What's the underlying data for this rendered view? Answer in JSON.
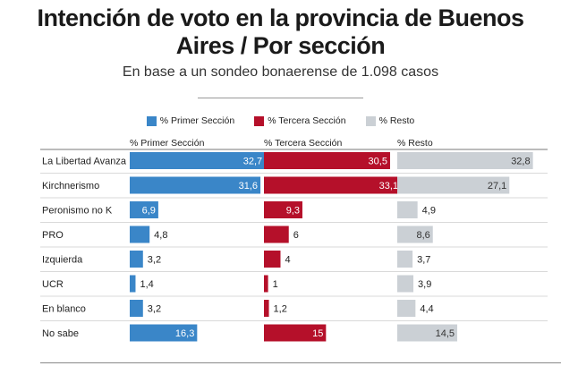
{
  "title_line1": "Intención de voto en la provincia de Buenos",
  "title_line2": "Aires / Por sección",
  "subtitle": "En base a un sondeo bonaerense de 1.098 casos",
  "colors": {
    "primera": "#3a86c8",
    "tercera": "#b5102a",
    "resto": "#cbd0d5"
  },
  "chart_data": {
    "type": "bar",
    "title": "Intención de voto en la provincia de Buenos Aires / Por sección",
    "subtitle": "En base a un sondeo bonaerense de 1.098 casos",
    "legend_position": "top",
    "categories": [
      "La Libertad Avanza",
      "Kirchnerismo",
      "Peronismo no K",
      "PRO",
      "Izquierda",
      "UCR",
      "En blanco",
      "No sabe"
    ],
    "series": [
      {
        "name": "% Primer Sección",
        "values": [
          32.7,
          31.6,
          6.9,
          4.8,
          3.2,
          1.4,
          3.2,
          16.3
        ],
        "labels": [
          "32,7",
          "31,6",
          "6,9",
          "4,8",
          "3,2",
          "1,4",
          "3,2",
          "16,3"
        ]
      },
      {
        "name": "% Tercera Sección",
        "values": [
          30.5,
          33.1,
          9.3,
          6,
          4,
          1,
          1.2,
          15
        ],
        "labels": [
          "30,5",
          "33,1",
          "9,3",
          "6",
          "4",
          "1",
          "1,2",
          "15"
        ]
      },
      {
        "name": "% Resto",
        "values": [
          32.8,
          27.1,
          4.9,
          8.6,
          3.7,
          3.9,
          4.4,
          14.5
        ],
        "labels": [
          "32,8",
          "27,1",
          "4,9",
          "8,6",
          "3,7",
          "3,9",
          "4,4",
          "14,5"
        ]
      }
    ],
    "xlim": [
      0,
      33.1
    ]
  }
}
